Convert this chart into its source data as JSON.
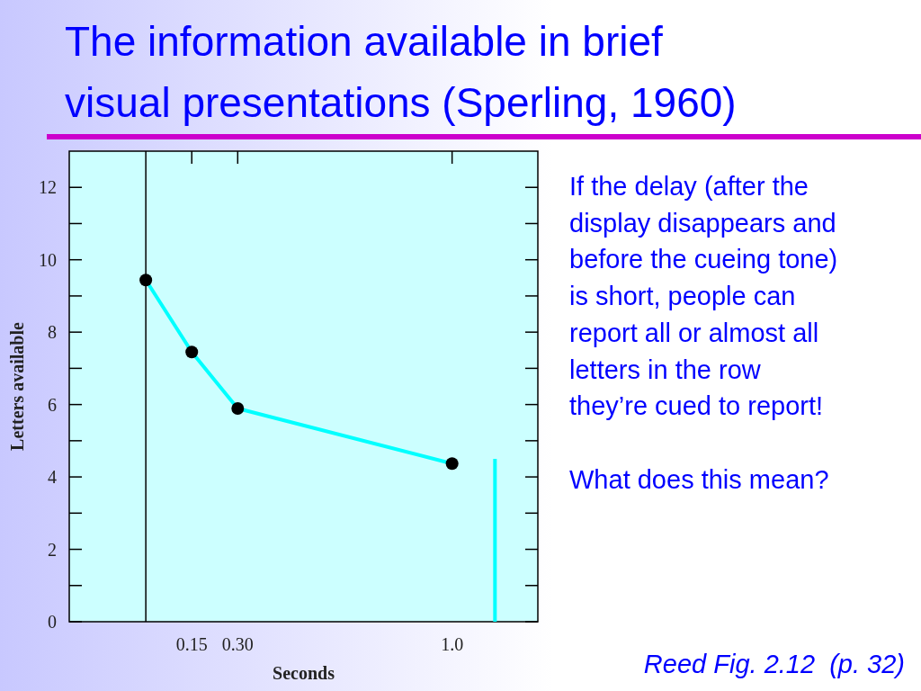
{
  "chart_data": {
    "type": "line",
    "title": "The information available in brief visual presentations (Sperling, 1960)",
    "xlabel": "Seconds",
    "ylabel": "Letters available",
    "x": [
      0,
      0.15,
      0.3,
      1.0
    ],
    "series": [
      {
        "color": "#00ffff",
        "values": [
          9.44,
          7.45,
          5.89,
          4.37
        ],
        "marker": "circle"
      },
      {
        "color": "#00ffff",
        "x": [
          1.14,
          1.14
        ],
        "values": [
          0,
          4.5
        ],
        "marker": "none"
      }
    ],
    "xlim": [
      -0.25,
      1.28
    ],
    "xticks": [
      0.15,
      {
        "value": 0.3,
        "label": "0.30"
      },
      {
        "value": 1.0,
        "label": "1.0"
      }
    ],
    "ylim": [
      0,
      13
    ],
    "yticks": [
      0,
      {
        "value": 1,
        "label": null
      },
      2,
      {
        "value": 3,
        "label": null
      },
      4,
      {
        "value": 5,
        "label": null
      },
      6,
      {
        "value": 7,
        "label": null
      },
      8,
      {
        "value": 9,
        "label": null
      },
      10,
      {
        "value": 11,
        "label": null
      },
      12
    ],
    "ref_lines": [
      {
        "axis": "x",
        "value": 0,
        "color": "#000000"
      }
    ],
    "grid": false,
    "line_style": "solid",
    "annotations": [
      "If the delay (after the display disappears and before the cueing tone) is short, people can report all or almost all letters in the row they’re cued to report!",
      "What does this mean?",
      "Reed Fig. 2.12  (p. 32)"
    ]
  }
}
